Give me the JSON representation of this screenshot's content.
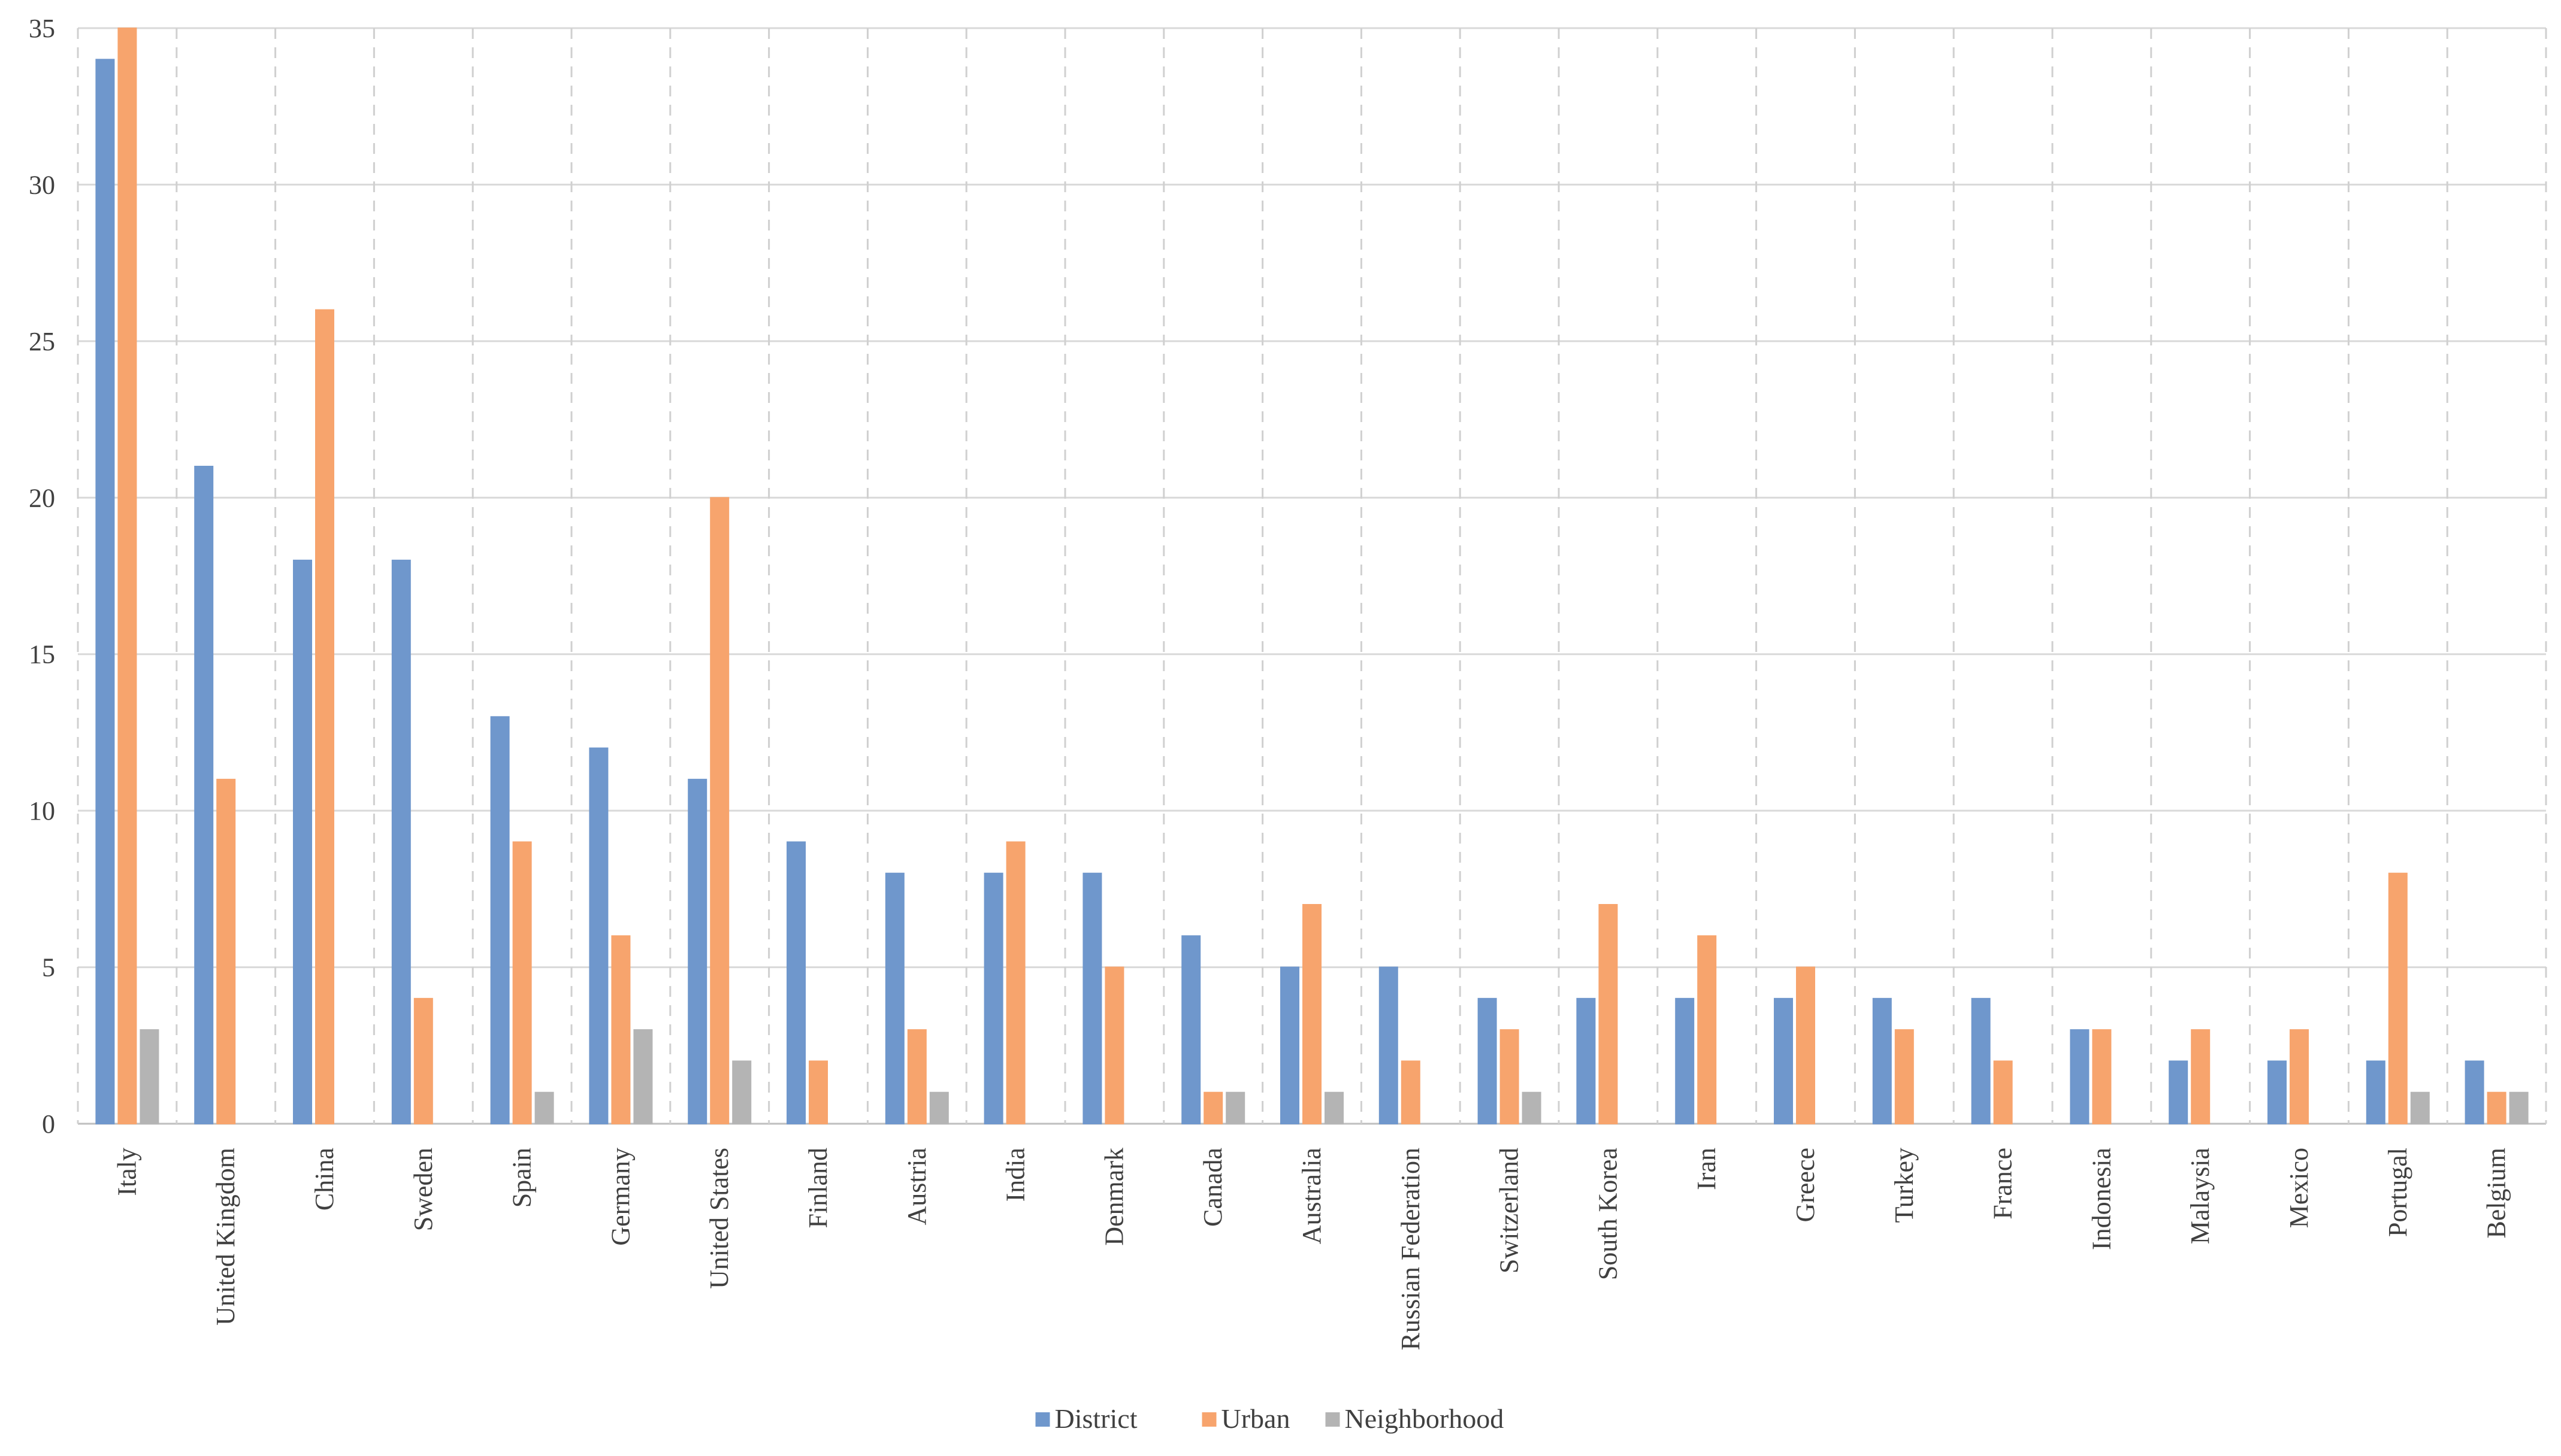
{
  "chart_data": {
    "type": "bar",
    "categories": [
      "Italy",
      "United Kingdom",
      "China",
      "Sweden",
      "Spain",
      "Germany",
      "United States",
      "Finland",
      "Austria",
      "India",
      "Denmark",
      "Canada",
      "Australia",
      "Russian Federation",
      "Switzerland",
      "South Korea",
      "Iran",
      "Greece",
      "Turkey",
      "France",
      "Indonesia",
      "Malaysia",
      "Mexico",
      "Portugal",
      "Belgium"
    ],
    "series": [
      {
        "name": "District",
        "color": "#6f97cc",
        "values": [
          34,
          21,
          18,
          18,
          13,
          12,
          11,
          9,
          8,
          8,
          8,
          6,
          5,
          5,
          4,
          4,
          4,
          4,
          4,
          4,
          3,
          2,
          2,
          2,
          2
        ]
      },
      {
        "name": "Urban",
        "color": "#f7a46d",
        "values": [
          35,
          11,
          26,
          4,
          9,
          6,
          20,
          2,
          3,
          9,
          5,
          1,
          7,
          2,
          3,
          7,
          6,
          5,
          3,
          2,
          3,
          3,
          3,
          8,
          1
        ]
      },
      {
        "name": "Neighborhood",
        "color": "#b4b4b4",
        "values": [
          3,
          0,
          0,
          0,
          1,
          3,
          2,
          0,
          1,
          0,
          0,
          1,
          1,
          0,
          1,
          0,
          0,
          0,
          0,
          0,
          0,
          0,
          0,
          1,
          1
        ]
      }
    ],
    "ylim": [
      0,
      35
    ],
    "yticks": [
      0,
      5,
      10,
      15,
      20,
      25,
      30,
      35
    ],
    "grid": {
      "horizontal": "solid",
      "vertical": "dashed"
    },
    "legend": "bottom-center",
    "title": "",
    "xlabel": "",
    "ylabel": ""
  }
}
